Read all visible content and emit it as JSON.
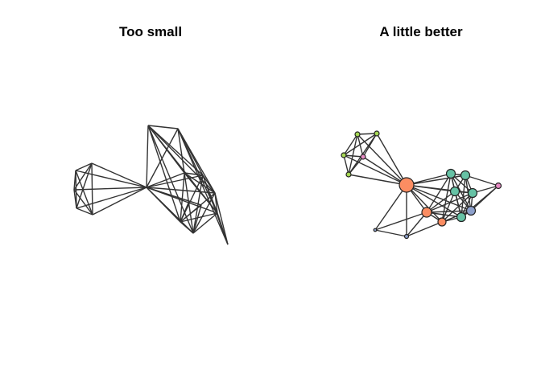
{
  "panels": [
    {
      "id": "left",
      "title": "Too small"
    },
    {
      "id": "right",
      "title": "A little better"
    }
  ],
  "colors": {
    "edge": "#333333",
    "lime": "#a6d854",
    "orange": "#fc8d62",
    "green": "#66c2a5",
    "blue": "#8da0cb",
    "pink": "#e78ac3"
  }
}
